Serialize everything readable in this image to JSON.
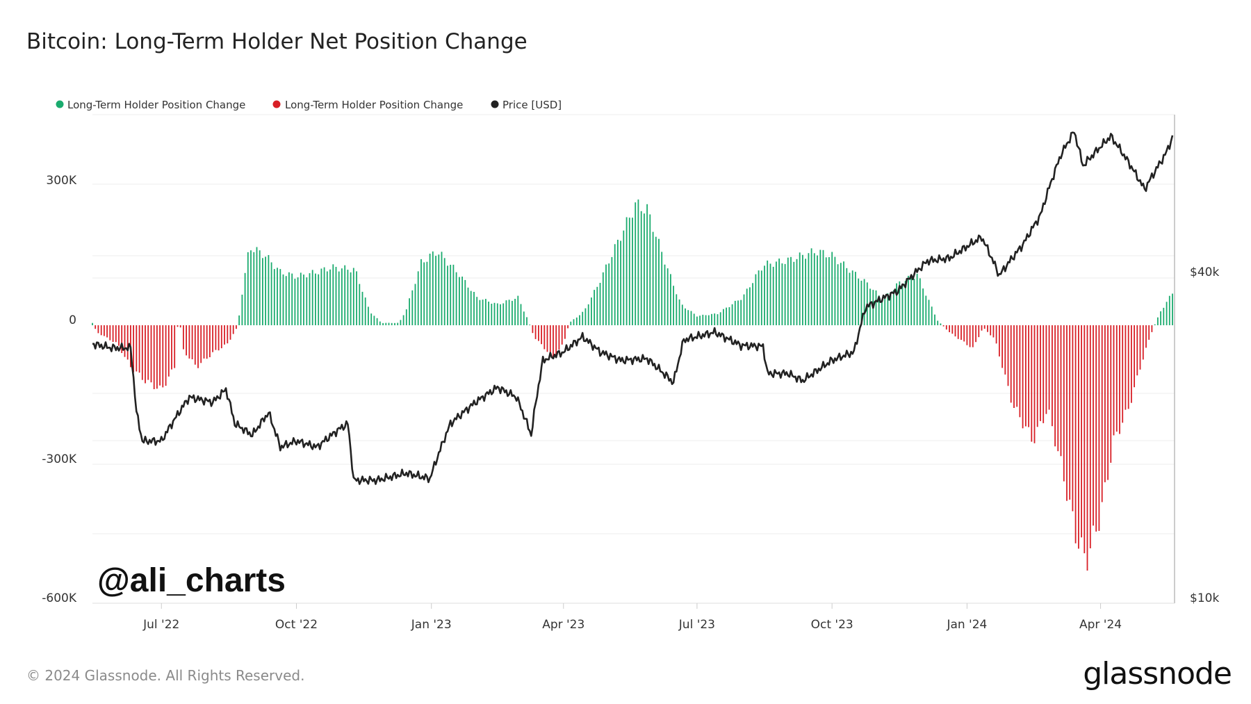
{
  "page": {
    "title": "Bitcoin: Long-Term Holder Net Position Change",
    "footer": "© 2024 Glassnode. All Rights Reserved.",
    "brand": "glassnode",
    "watermark": "@ali_charts"
  },
  "colors": {
    "positive": "#1aab6e",
    "negative": "#d81f26",
    "price": "#222222"
  },
  "chart_data": {
    "type": "bar",
    "title": "Bitcoin: Long-Term Holder Net Position Change",
    "x_ticks": [
      "Jul '22",
      "Oct '22",
      "Jan '23",
      "Apr '23",
      "Jul '23",
      "Oct '23",
      "Jan '24",
      "Apr '24"
    ],
    "y_left": {
      "ticks": [
        "300K",
        "0",
        "-300K",
        "-600K"
      ],
      "range": [
        -600000,
        450000
      ]
    },
    "y_right": {
      "ticks": [
        "$40k",
        "$10k"
      ],
      "scale": "log"
    },
    "legend": {
      "placement": "top-left",
      "items": [
        {
          "label": "Long-Term Holder Position Change",
          "color": "#1aab6e"
        },
        {
          "label": "Long-Term Holder Position Change",
          "color": "#d81f26"
        },
        {
          "label": "Price [USD]",
          "color": "#222222"
        }
      ]
    },
    "series": [
      {
        "name": "Long-Term Holder Position Change",
        "type": "bar",
        "x_range": [
          "2022-05-15",
          "2024-05-20"
        ],
        "anchors": [
          [
            "2022-05-15",
            5000
          ],
          [
            "2022-05-18",
            -15000
          ],
          [
            "2022-06-01",
            -40000
          ],
          [
            "2022-06-10",
            -90000
          ],
          [
            "2022-06-20",
            -120000
          ],
          [
            "2022-07-01",
            -140000
          ],
          [
            "2022-07-10",
            -90000
          ],
          [
            "2022-07-13",
            40000
          ],
          [
            "2022-07-15",
            -50000
          ],
          [
            "2022-07-25",
            -90000
          ],
          [
            "2022-08-05",
            -60000
          ],
          [
            "2022-08-15",
            -40000
          ],
          [
            "2022-08-22",
            -3000
          ],
          [
            "2022-08-25",
            70000
          ],
          [
            "2022-08-30",
            170000
          ],
          [
            "2022-09-10",
            150000
          ],
          [
            "2022-09-20",
            115000
          ],
          [
            "2022-10-01",
            105000
          ],
          [
            "2022-10-15",
            115000
          ],
          [
            "2022-10-25",
            125000
          ],
          [
            "2022-11-10",
            120000
          ],
          [
            "2022-11-20",
            30000
          ],
          [
            "2022-11-28",
            5000
          ],
          [
            "2022-12-10",
            5000
          ],
          [
            "2022-12-15",
            35000
          ],
          [
            "2022-12-25",
            135000
          ],
          [
            "2023-01-05",
            160000
          ],
          [
            "2023-01-20",
            110000
          ],
          [
            "2023-02-01",
            60000
          ],
          [
            "2023-02-15",
            45000
          ],
          [
            "2023-03-01",
            60000
          ],
          [
            "2023-03-08",
            10000
          ],
          [
            "2023-03-12",
            -25000
          ],
          [
            "2023-03-25",
            -70000
          ],
          [
            "2023-04-01",
            -40000
          ],
          [
            "2023-04-05",
            5000
          ],
          [
            "2023-04-15",
            30000
          ],
          [
            "2023-04-25",
            90000
          ],
          [
            "2023-05-05",
            160000
          ],
          [
            "2023-05-20",
            260000
          ],
          [
            "2023-05-28",
            250000
          ],
          [
            "2023-06-10",
            130000
          ],
          [
            "2023-06-20",
            45000
          ],
          [
            "2023-07-01",
            20000
          ],
          [
            "2023-07-15",
            25000
          ],
          [
            "2023-08-01",
            60000
          ],
          [
            "2023-08-15",
            130000
          ],
          [
            "2023-09-01",
            140000
          ],
          [
            "2023-09-20",
            160000
          ],
          [
            "2023-10-01",
            150000
          ],
          [
            "2023-10-15",
            115000
          ],
          [
            "2023-10-25",
            90000
          ],
          [
            "2023-11-05",
            55000
          ],
          [
            "2023-11-15",
            90000
          ],
          [
            "2023-11-28",
            110000
          ],
          [
            "2023-12-05",
            60000
          ],
          [
            "2023-12-12",
            10000
          ],
          [
            "2023-12-20",
            -15000
          ],
          [
            "2024-01-05",
            -50000
          ],
          [
            "2024-01-12",
            -5000
          ],
          [
            "2024-01-20",
            -30000
          ],
          [
            "2024-02-01",
            -170000
          ],
          [
            "2024-02-15",
            -250000
          ],
          [
            "2024-02-25",
            -180000
          ],
          [
            "2024-03-05",
            -300000
          ],
          [
            "2024-03-15",
            -450000
          ],
          [
            "2024-03-22",
            -510000
          ],
          [
            "2024-04-01",
            -410000
          ],
          [
            "2024-04-10",
            -250000
          ],
          [
            "2024-04-20",
            -180000
          ],
          [
            "2024-05-01",
            -60000
          ],
          [
            "2024-05-07",
            -5000
          ],
          [
            "2024-05-12",
            30000
          ],
          [
            "2024-05-20",
            70000
          ]
        ]
      },
      {
        "name": "Price [USD]",
        "type": "line",
        "anchors": [
          [
            "2022-05-15",
            29500
          ],
          [
            "2022-05-28",
            29000
          ],
          [
            "2022-06-10",
            29000
          ],
          [
            "2022-06-14",
            22000
          ],
          [
            "2022-06-18",
            19500
          ],
          [
            "2022-07-01",
            19500
          ],
          [
            "2022-07-20",
            23500
          ],
          [
            "2022-08-05",
            23000
          ],
          [
            "2022-08-14",
            24300
          ],
          [
            "2022-08-20",
            21000
          ],
          [
            "2022-09-01",
            20000
          ],
          [
            "2022-09-12",
            22000
          ],
          [
            "2022-09-20",
            19000
          ],
          [
            "2022-10-01",
            19500
          ],
          [
            "2022-10-15",
            19000
          ],
          [
            "2022-10-30",
            20500
          ],
          [
            "2022-11-05",
            21000
          ],
          [
            "2022-11-09",
            16500
          ],
          [
            "2022-11-25",
            16500
          ],
          [
            "2022-12-15",
            17000
          ],
          [
            "2022-12-31",
            16600
          ],
          [
            "2023-01-14",
            21000
          ],
          [
            "2023-01-31",
            23000
          ],
          [
            "2023-02-15",
            24500
          ],
          [
            "2023-02-28",
            23500
          ],
          [
            "2023-03-10",
            20000
          ],
          [
            "2023-03-18",
            27500
          ],
          [
            "2023-04-01",
            28500
          ],
          [
            "2023-04-14",
            30400
          ],
          [
            "2023-04-26",
            28500
          ],
          [
            "2023-05-10",
            27500
          ],
          [
            "2023-05-28",
            27700
          ],
          [
            "2023-06-15",
            25000
          ],
          [
            "2023-06-22",
            30000
          ],
          [
            "2023-07-13",
            31000
          ],
          [
            "2023-07-31",
            29300
          ],
          [
            "2023-08-15",
            29200
          ],
          [
            "2023-08-18",
            26000
          ],
          [
            "2023-09-01",
            26000
          ],
          [
            "2023-09-11",
            25200
          ],
          [
            "2023-10-01",
            27500
          ],
          [
            "2023-10-16",
            28500
          ],
          [
            "2023-10-24",
            34500
          ],
          [
            "2023-11-15",
            37000
          ],
          [
            "2023-12-05",
            42000
          ],
          [
            "2023-12-20",
            42500
          ],
          [
            "2024-01-11",
            46500
          ],
          [
            "2024-01-23",
            39500
          ],
          [
            "2024-02-08",
            45000
          ],
          [
            "2024-02-20",
            51000
          ],
          [
            "2024-03-05",
            66000
          ],
          [
            "2024-03-14",
            73000
          ],
          [
            "2024-03-20",
            63000
          ],
          [
            "2024-04-08",
            71500
          ],
          [
            "2024-04-20",
            64000
          ],
          [
            "2024-05-01",
            57000
          ],
          [
            "2024-05-15",
            66000
          ],
          [
            "2024-05-20",
            71000
          ]
        ]
      }
    ]
  }
}
